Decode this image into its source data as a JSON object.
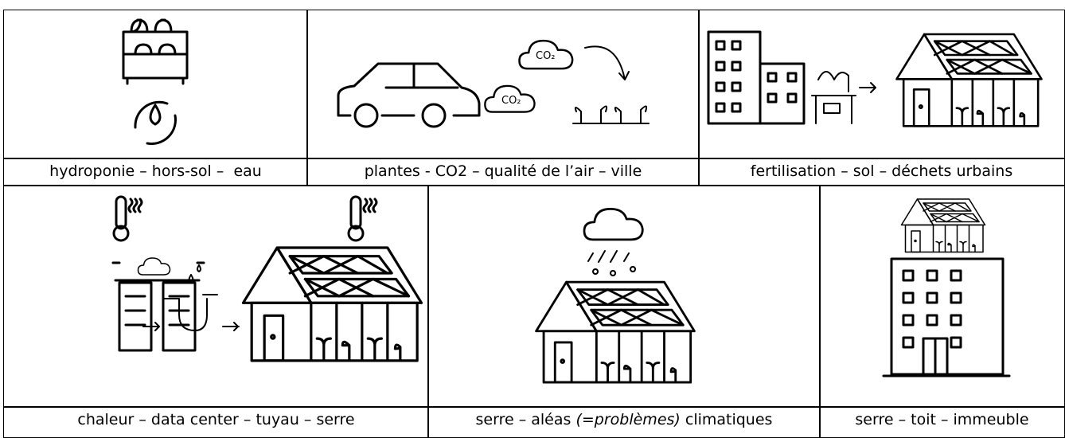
{
  "table": {
    "rows": [
      [
        {
          "caption": "hydroponie – hors-sol –  eau"
        },
        {
          "caption": "plantes - CO2 – qualité de l’air – ville",
          "icon_labels": [
            "CO₂",
            "CO₂"
          ]
        },
        {
          "caption": "fertilisation – sol – déchets urbains"
        }
      ],
      [
        {
          "caption": "chaleur – data center – tuyau – serre"
        },
        {
          "caption": [
            "serre – aléas ",
            "(=problèmes)",
            " climatiques"
          ]
        },
        {
          "caption": "serre – toit – immeuble"
        }
      ]
    ]
  }
}
